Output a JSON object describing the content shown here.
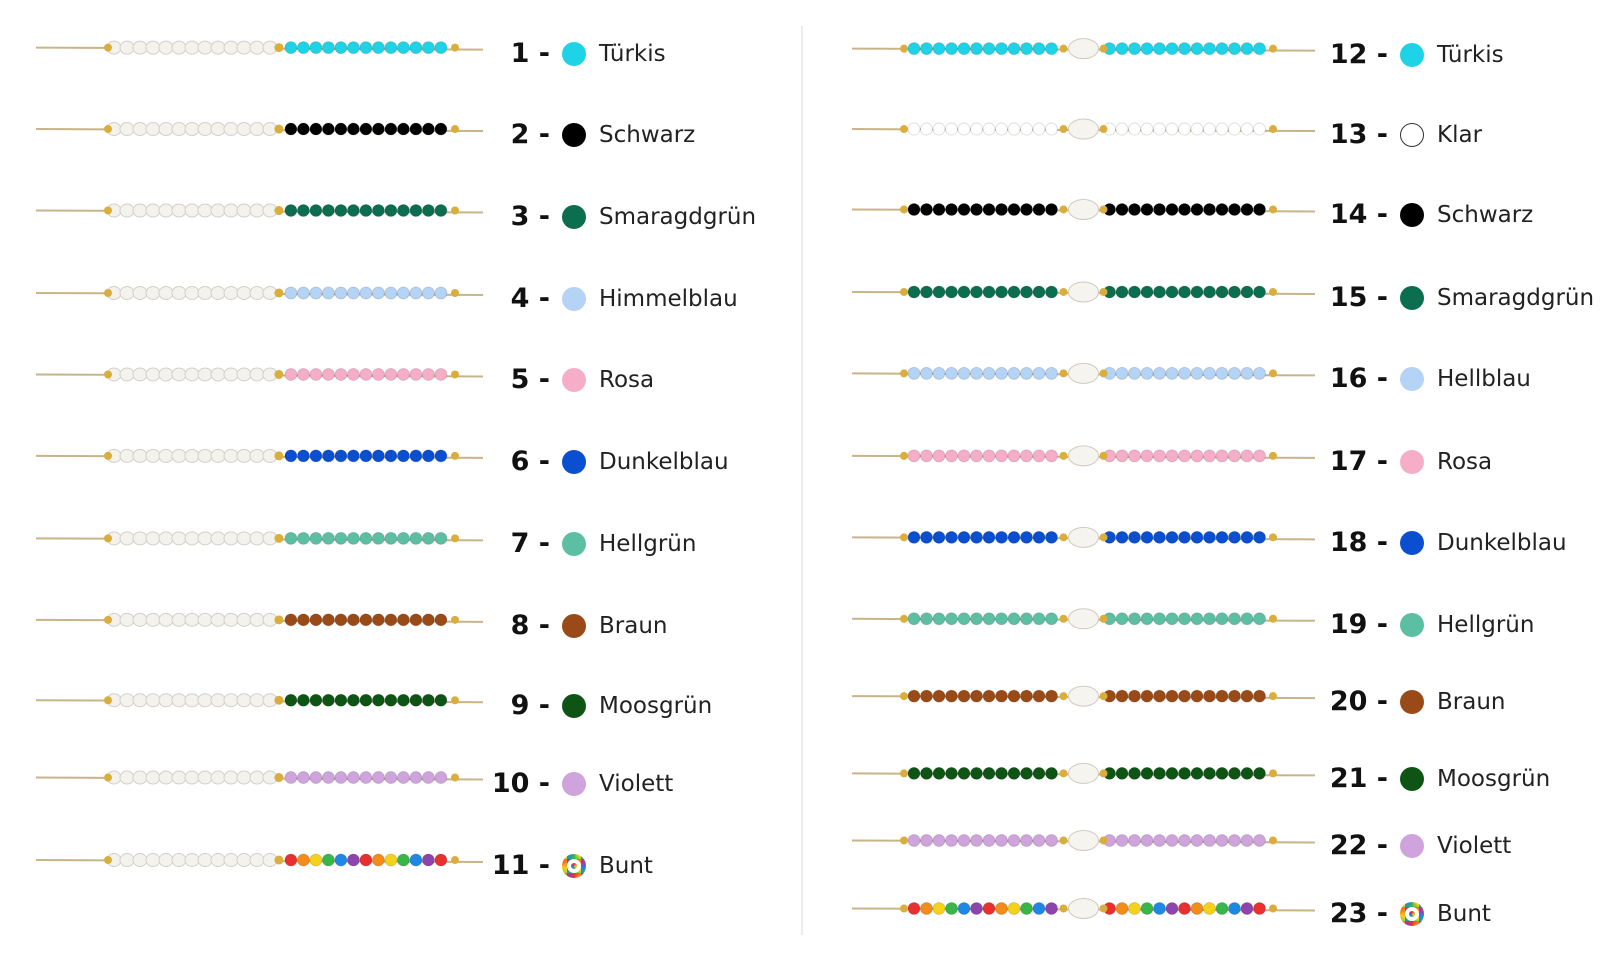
{
  "left": [
    {
      "number": "1 -",
      "name": "Türkis",
      "color": "#1fd3e6"
    },
    {
      "number": "2 -",
      "name": "Schwarz",
      "color": "#000000"
    },
    {
      "number": "3 -",
      "name": "Smaragdgrün",
      "color": "#0b6e4f"
    },
    {
      "number": "4 -",
      "name": "Himmelblau",
      "color": "#b5d3f5"
    },
    {
      "number": "5 -",
      "name": "Rosa",
      "color": "#f6aec8"
    },
    {
      "number": "6 -",
      "name": "Dunkelblau",
      "color": "#0a4fd0"
    },
    {
      "number": "7 -",
      "name": "Hellgrün",
      "color": "#5cbfa3"
    },
    {
      "number": "8 -",
      "name": "Braun",
      "color": "#9a4a16"
    },
    {
      "number": "9 -",
      "name": "Moosgrün",
      "color": "#0d5415"
    },
    {
      "number": "10 -",
      "name": "Violett",
      "color": "#cfa3dc"
    },
    {
      "number": "11 -",
      "name": "Bunt",
      "color": [
        "#e8312f",
        "#f28c1b",
        "#f5d21a",
        "#39b54a",
        "#1e88e5",
        "#8e44ad"
      ]
    }
  ],
  "right": [
    {
      "number": "12 -",
      "name": "Türkis",
      "color": "#1fd3e6"
    },
    {
      "number": "13 -",
      "name": "Klar",
      "color": "#ffffff"
    },
    {
      "number": "14 -",
      "name": "Schwarz",
      "color": "#000000"
    },
    {
      "number": "15 -",
      "name": "Smaragdgrün",
      "color": "#0b6e4f"
    },
    {
      "number": "16 -",
      "name": "Hellblau",
      "color": "#b5d3f5"
    },
    {
      "number": "17 -",
      "name": "Rosa",
      "color": "#f6aec8"
    },
    {
      "number": "18 -",
      "name": "Dunkelblau",
      "color": "#0a4fd0"
    },
    {
      "number": "19 -",
      "name": "Hellgrün",
      "color": "#5cbfa3"
    },
    {
      "number": "20 -",
      "name": "Braun",
      "color": "#9a4a16"
    },
    {
      "number": "21 -",
      "name": "Moosgrün",
      "color": "#0d5415"
    },
    {
      "number": "22 -",
      "name": "Violett",
      "color": "#cfa3dc"
    },
    {
      "number": "23 -",
      "name": "Bunt",
      "color": [
        "#e8312f",
        "#f28c1b",
        "#f5d21a",
        "#39b54a",
        "#1e88e5",
        "#8e44ad"
      ]
    }
  ]
}
